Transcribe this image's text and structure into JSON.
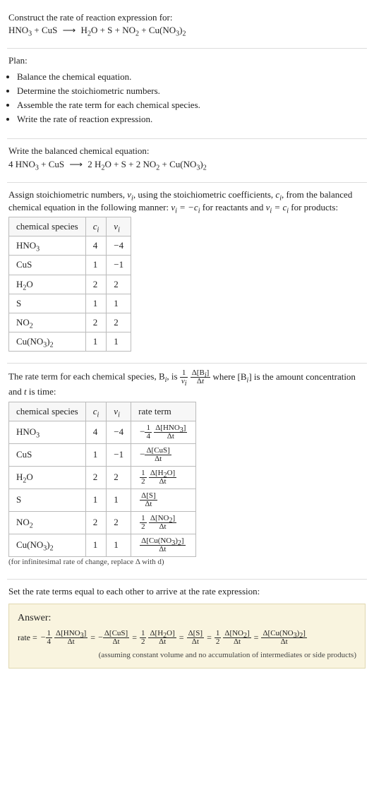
{
  "header": {
    "prompt": "Construct the rate of reaction expression for:",
    "unbalanced_lhs": [
      "HNO",
      "3",
      " + CuS"
    ],
    "unbalanced_rhs": [
      "H",
      "2",
      "O + S + NO",
      "2",
      " + Cu(NO",
      "3",
      ")",
      "2"
    ]
  },
  "plan": {
    "title": "Plan:",
    "items": [
      "Balance the chemical equation.",
      "Determine the stoichiometric numbers.",
      "Assemble the rate term for each chemical species.",
      "Write the rate of reaction expression."
    ]
  },
  "balanced": {
    "title": "Write the balanced chemical equation:",
    "lhs": "4 HNO₃ + CuS",
    "rhs": "2 H₂O + S + 2 NO₂ + Cu(NO₃)₂"
  },
  "stoich_intro": {
    "text1": "Assign stoichiometric numbers, ",
    "nu": "ν",
    "i": "i",
    "text2": ", using the stoichiometric coefficients, ",
    "c": "c",
    "text3": ", from the balanced chemical equation in the following manner: ",
    "eq1_lhs": "νᵢ = −cᵢ",
    "text4": " for reactants and ",
    "eq2_lhs": "νᵢ = cᵢ",
    "text5": " for products:"
  },
  "stoich_table": {
    "headers": [
      "chemical species",
      "cᵢ",
      "νᵢ"
    ],
    "rows": [
      {
        "sp": "HNO₃",
        "c": "4",
        "v": "−4"
      },
      {
        "sp": "CuS",
        "c": "1",
        "v": "−1"
      },
      {
        "sp": "H₂O",
        "c": "2",
        "v": "2"
      },
      {
        "sp": "S",
        "c": "1",
        "v": "1"
      },
      {
        "sp": "NO₂",
        "c": "2",
        "v": "2"
      },
      {
        "sp": "Cu(NO₃)₂",
        "c": "1",
        "v": "1"
      }
    ]
  },
  "rate_intro": {
    "text1": "The rate term for each chemical species, B",
    "text2": ", is ",
    "coef_num": "1",
    "coef_den": "νᵢ",
    "d_num": "Δ[Bᵢ]",
    "d_den": "Δt",
    "text3": " where [Bᵢ] is the amount concentration and ",
    "t": "t",
    "text4": " is time:"
  },
  "rate_table": {
    "headers": [
      "chemical species",
      "cᵢ",
      "νᵢ",
      "rate term"
    ],
    "rows": [
      {
        "sp": "HNO₃",
        "c": "4",
        "v": "−4",
        "neg": "−",
        "cn": "1",
        "cd": "4",
        "dn": "Δ[HNO₃]",
        "dd": "Δt"
      },
      {
        "sp": "CuS",
        "c": "1",
        "v": "−1",
        "neg": "−",
        "cn": "",
        "cd": "",
        "dn": "Δ[CuS]",
        "dd": "Δt"
      },
      {
        "sp": "H₂O",
        "c": "2",
        "v": "2",
        "neg": "",
        "cn": "1",
        "cd": "2",
        "dn": "Δ[H₂O]",
        "dd": "Δt"
      },
      {
        "sp": "S",
        "c": "1",
        "v": "1",
        "neg": "",
        "cn": "",
        "cd": "",
        "dn": "Δ[S]",
        "dd": "Δt"
      },
      {
        "sp": "NO₂",
        "c": "2",
        "v": "2",
        "neg": "",
        "cn": "1",
        "cd": "2",
        "dn": "Δ[NO₂]",
        "dd": "Δt"
      },
      {
        "sp": "Cu(NO₃)₂",
        "c": "1",
        "v": "1",
        "neg": "",
        "cn": "",
        "cd": "",
        "dn": "Δ[Cu(NO₃)₂]",
        "dd": "Δt"
      }
    ],
    "footnote": "(for infinitesimal rate of change, replace Δ with d)"
  },
  "final_intro": "Set the rate terms equal to each other to arrive at the rate expression:",
  "answer": {
    "title": "Answer:",
    "prefix": "rate = ",
    "terms": [
      {
        "neg": "−",
        "cn": "1",
        "cd": "4",
        "dn": "Δ[HNO₃]",
        "dd": "Δt"
      },
      {
        "neg": "−",
        "cn": "",
        "cd": "",
        "dn": "Δ[CuS]",
        "dd": "Δt"
      },
      {
        "neg": "",
        "cn": "1",
        "cd": "2",
        "dn": "Δ[H₂O]",
        "dd": "Δt"
      },
      {
        "neg": "",
        "cn": "",
        "cd": "",
        "dn": "Δ[S]",
        "dd": "Δt"
      },
      {
        "neg": "",
        "cn": "1",
        "cd": "2",
        "dn": "Δ[NO₂]",
        "dd": "Δt"
      },
      {
        "neg": "",
        "cn": "",
        "cd": "",
        "dn": "Δ[Cu(NO₃)₂]",
        "dd": "Δt"
      }
    ],
    "assumption": "(assuming constant volume and no accumulation of intermediates or side products)"
  }
}
